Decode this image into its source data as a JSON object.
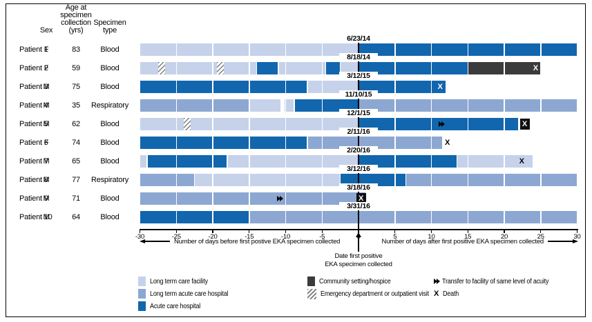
{
  "table_headers": {
    "sex": "Sex",
    "age": "Age at\nspecimen\ncollection\n(yrs)",
    "specimen": "Specimen\ntype"
  },
  "legend": {
    "columns": [
      [
        {
          "icon": "ltcf",
          "label": "Long term care facility"
        },
        {
          "icon": "ltach",
          "label": "Long term acute care hospital"
        },
        {
          "icon": "ach",
          "label": "Acute care hospital"
        }
      ],
      [
        {
          "icon": "hospice",
          "label": "Community setting/hospice"
        },
        {
          "icon": "ed",
          "label": "Emergency department or outpatient visit"
        }
      ],
      [
        {
          "icon": "transfer",
          "label": "Transfer to facility of same level of acuity"
        },
        {
          "icon": "death",
          "symbol": "X",
          "label": "Death"
        }
      ]
    ]
  },
  "chart_data": {
    "type": "bar",
    "subtype": "horizontal-patient-timeline",
    "x_axis": {
      "min": -30,
      "max": 30,
      "ticks": [
        -30,
        -25,
        -20,
        -15,
        -10,
        -5,
        0,
        5,
        10,
        15,
        20,
        25,
        30
      ],
      "label_before": "Number of days before first postive EKA specimen collected",
      "label_after": "Number of days after first positive EKA specimen collected",
      "zero_caption": "Date first positive\nEKA specimen collected"
    },
    "colors": {
      "ltcf": "#c6d2ea",
      "ltach": "#8da7d3",
      "ach": "#1166ae",
      "hospice": "#3b3b3b"
    },
    "patients": [
      {
        "label": "Patient 1",
        "sex": "F",
        "age": 83,
        "specimen": "Blood",
        "date": "6/23/14",
        "segments": [
          {
            "c": "ltcf",
            "s": -30,
            "e": 0
          },
          {
            "c": "ach",
            "s": 0,
            "e": 30
          }
        ],
        "markers": []
      },
      {
        "label": "Patient 2",
        "sex": "F",
        "age": 59,
        "specimen": "Blood",
        "date": "8/18/14",
        "segments": [
          {
            "c": "ltcf",
            "s": -30,
            "e": -14
          },
          {
            "c": "ach",
            "s": -14,
            "e": -11
          },
          {
            "c": "ltcf",
            "s": -11,
            "e": -4.5
          },
          {
            "c": "ach",
            "s": -4.5,
            "e": -2.5
          },
          {
            "c": "ltcf",
            "s": -2.5,
            "e": 0
          },
          {
            "c": "ach",
            "s": 0,
            "e": 15
          },
          {
            "c": "hospice",
            "s": 15,
            "e": 25
          }
        ],
        "markers": [
          {
            "t": "ed",
            "d": -27
          },
          {
            "t": "ed",
            "d": -19
          },
          {
            "t": "death",
            "d": 24.3,
            "v": "white"
          }
        ]
      },
      {
        "label": "Patient 3",
        "sex": "M",
        "age": 75,
        "specimen": "Blood",
        "date": "3/12/15",
        "segments": [
          {
            "c": "ach",
            "s": -30,
            "e": -7
          },
          {
            "c": "ltcf",
            "s": -7,
            "e": 0
          },
          {
            "c": "ach",
            "s": 0,
            "e": 12
          }
        ],
        "markers": [
          {
            "t": "death",
            "d": 11.2,
            "v": "white"
          }
        ]
      },
      {
        "label": "Patient 4",
        "sex": "M",
        "age": 35,
        "specimen": "Respiratory",
        "date": "11/10/15",
        "segments": [
          {
            "c": "ltach",
            "s": -30,
            "e": -15
          },
          {
            "c": "ltcf",
            "s": -15,
            "e": -10.6
          },
          {
            "c": "ltcf",
            "s": -10.2,
            "e": -8.8
          },
          {
            "c": "ach",
            "s": -8.8,
            "e": 0
          },
          {
            "c": "ltach",
            "s": 0,
            "e": 30
          }
        ],
        "markers": []
      },
      {
        "label": "Patient 5",
        "sex": "M",
        "age": 62,
        "specimen": "Blood",
        "date": "12/1/15",
        "segments": [
          {
            "c": "ltcf",
            "s": -30,
            "e": 0
          },
          {
            "c": "ach",
            "s": 0,
            "e": 22
          }
        ],
        "markers": [
          {
            "t": "ed",
            "d": -23.5
          },
          {
            "t": "transfer",
            "d": 11.5
          },
          {
            "t": "death",
            "d": 22.8,
            "v": "boxed"
          }
        ]
      },
      {
        "label": "Patient 6",
        "sex": "F",
        "age": 74,
        "specimen": "Blood",
        "date": "2/11/16",
        "segments": [
          {
            "c": "ach",
            "s": -30,
            "e": -7
          },
          {
            "c": "ltach",
            "s": -7,
            "e": 11.5
          }
        ],
        "markers": [
          {
            "t": "death",
            "d": 12.2,
            "v": "black"
          }
        ]
      },
      {
        "label": "Patient 7",
        "sex": "M",
        "age": 65,
        "specimen": "Blood",
        "date": "2/20/16",
        "segments": [
          {
            "c": "ltcf",
            "s": -30,
            "e": -29
          },
          {
            "c": "ach",
            "s": -29,
            "e": -18
          },
          {
            "c": "ltcf",
            "s": -18,
            "e": 0
          },
          {
            "c": "ach",
            "s": 0,
            "e": 13.5
          },
          {
            "c": "ltcf",
            "s": 13.5,
            "e": 24
          }
        ],
        "markers": [
          {
            "t": "death",
            "d": 22.4,
            "v": "black"
          }
        ]
      },
      {
        "label": "Patient 8",
        "sex": "M",
        "age": 77,
        "specimen": "Respiratory",
        "date": "3/12/16",
        "segments": [
          {
            "c": "ltach",
            "s": -30,
            "e": -22.5
          },
          {
            "c": "ltcf",
            "s": -22.5,
            "e": -2.5
          },
          {
            "c": "ach",
            "s": -2.5,
            "e": 6.5
          },
          {
            "c": "ltach",
            "s": 6.5,
            "e": 30
          }
        ],
        "markers": []
      },
      {
        "label": "Patient 9",
        "sex": "M",
        "age": 71,
        "specimen": "Blood",
        "date": "3/18/16",
        "segments": [
          {
            "c": "ltach",
            "s": -30,
            "e": 1
          }
        ],
        "markers": [
          {
            "t": "transfer",
            "d": -10.7
          },
          {
            "t": "death",
            "d": 0.35,
            "v": "boxed"
          }
        ]
      },
      {
        "label": "Patient 10",
        "sex": "M",
        "age": 64,
        "specimen": "Blood",
        "date": "3/31/16",
        "segments": [
          {
            "c": "ach",
            "s": -30,
            "e": -15
          },
          {
            "c": "ltach",
            "s": -15,
            "e": 30
          }
        ],
        "markers": []
      }
    ]
  }
}
